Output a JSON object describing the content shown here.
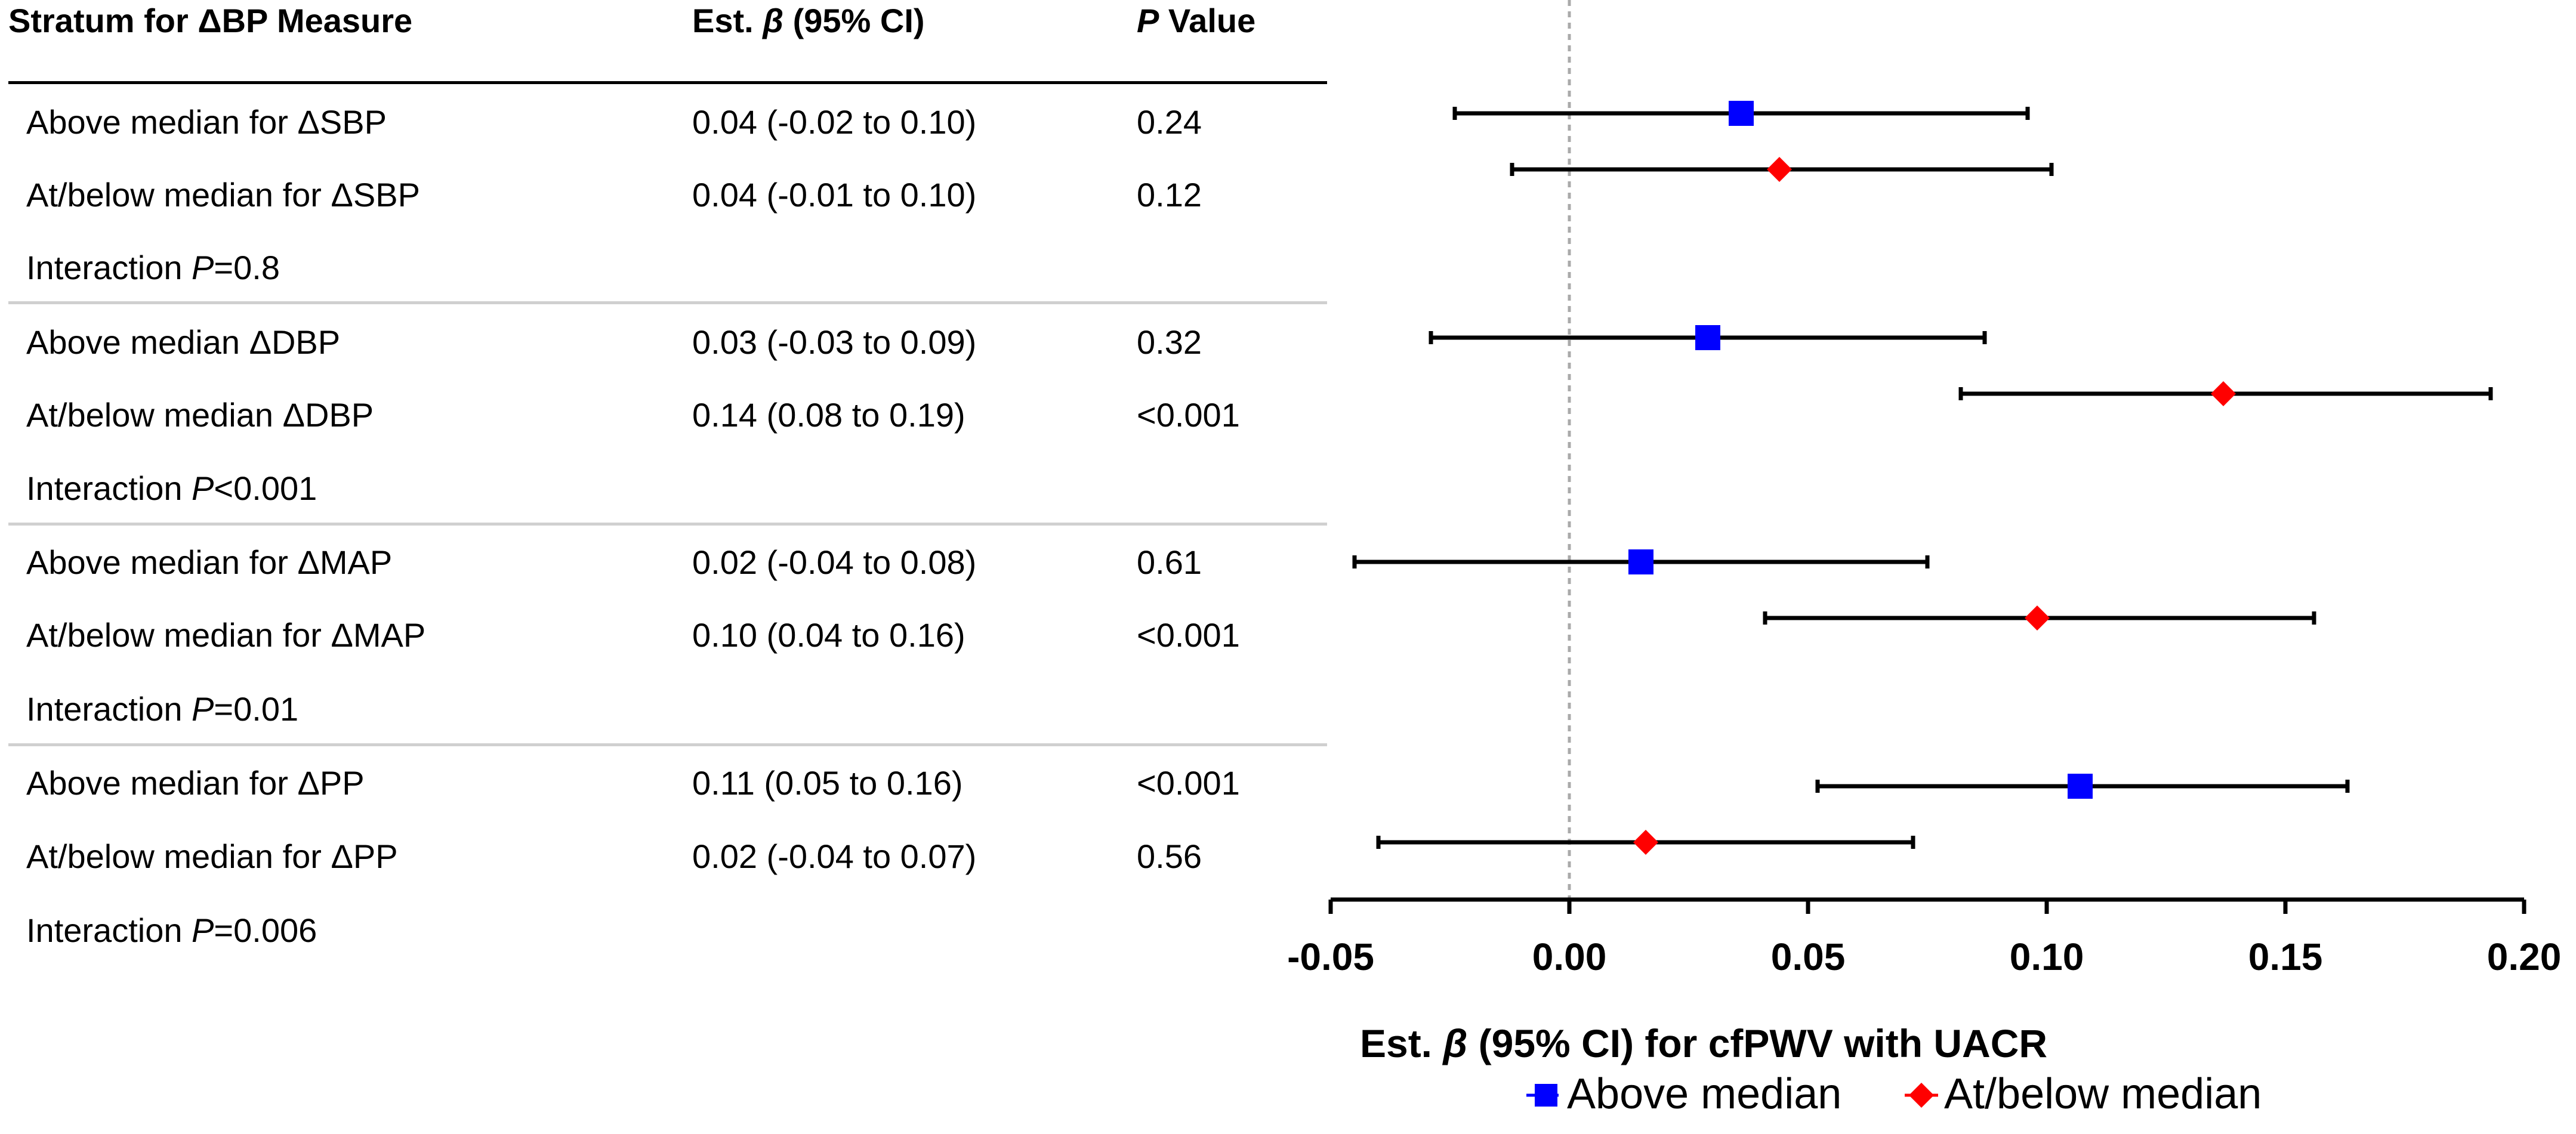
{
  "table": {
    "headers": {
      "stratum": "Stratum for ΔBP Measure",
      "est_prefix": "Est. ",
      "est_beta": "β",
      "est_suffix": " (95% CI)",
      "p_italic": "P",
      "p_suffix": " Value"
    },
    "rows": [
      {
        "label": "Above median for ΔSBP",
        "est": "0.04 (-0.02 to 0.10)",
        "p": "0.24"
      },
      {
        "label": "At/below median for ΔSBP",
        "est": "0.04 (-0.01 to 0.10)",
        "p": "0.12"
      },
      {
        "label": "Above median ΔDBP",
        "est": "0.03 (-0.03 to 0.09)",
        "p": "0.32"
      },
      {
        "label": "At/below median ΔDBP",
        "est": "0.14 (0.08 to 0.19)",
        "p": "<0.001"
      },
      {
        "label": "Above median for ΔMAP",
        "est": "0.02 (-0.04 to 0.08)",
        "p": "0.61"
      },
      {
        "label": "At/below median for ΔMAP",
        "est": "0.10 (0.04 to 0.16)",
        "p": "<0.001"
      },
      {
        "label": "Above median for ΔPP",
        "est": "0.11 (0.05 to 0.16)",
        "p": "<0.001"
      },
      {
        "label": "At/below median for ΔPP",
        "est": "0.02 (-0.04 to 0.07)",
        "p": "0.56"
      }
    ],
    "interactions": [
      {
        "prefix": "Interaction ",
        "p": "P",
        "value": "=0.8"
      },
      {
        "prefix": "Interaction ",
        "p": "P",
        "value": "<0.001"
      },
      {
        "prefix": "Interaction ",
        "p": "P",
        "value": "=0.01"
      },
      {
        "prefix": "Interaction ",
        "p": "P",
        "value": "=0.006"
      }
    ]
  },
  "chart_data": {
    "type": "forest",
    "xlabel_prefix": "Est. ",
    "xlabel_beta": "β",
    "xlabel_suffix": " (95% CI) for cfPWV with UACR",
    "xlim": [
      -0.05,
      0.2
    ],
    "xticks": [
      -0.05,
      0.0,
      0.05,
      0.1,
      0.15,
      0.2
    ],
    "xtick_labels": [
      "-0.05",
      "0.00",
      "0.05",
      "0.10",
      "0.15",
      "0.20"
    ],
    "reference_line": 0.0,
    "legend": [
      {
        "name": "Above median",
        "marker": "square",
        "color": "#0000ff"
      },
      {
        "name": "At/below median",
        "marker": "diamond",
        "color": "#ff0000"
      }
    ],
    "points": [
      {
        "group": "Above median",
        "stratum": "ΔSBP",
        "est": 0.036,
        "lo": -0.024,
        "hi": 0.096
      },
      {
        "group": "At/below median",
        "stratum": "ΔSBP",
        "est": 0.044,
        "lo": -0.012,
        "hi": 0.101
      },
      {
        "group": "Above median",
        "stratum": "ΔDBP",
        "est": 0.029,
        "lo": -0.029,
        "hi": 0.087
      },
      {
        "group": "At/below median",
        "stratum": "ΔDBP",
        "est": 0.137,
        "lo": 0.082,
        "hi": 0.193
      },
      {
        "group": "Above median",
        "stratum": "ΔMAP",
        "est": 0.015,
        "lo": -0.045,
        "hi": 0.075
      },
      {
        "group": "At/below median",
        "stratum": "ΔMAP",
        "est": 0.098,
        "lo": 0.041,
        "hi": 0.156
      },
      {
        "group": "Above median",
        "stratum": "ΔPP",
        "est": 0.107,
        "lo": 0.052,
        "hi": 0.163
      },
      {
        "group": "At/below median",
        "stratum": "ΔPP",
        "est": 0.016,
        "lo": -0.04,
        "hi": 0.072
      }
    ],
    "colors": {
      "above": "#0000ff",
      "below": "#ff0000",
      "axis": "#000000",
      "refline": "#aaaaaa"
    }
  }
}
